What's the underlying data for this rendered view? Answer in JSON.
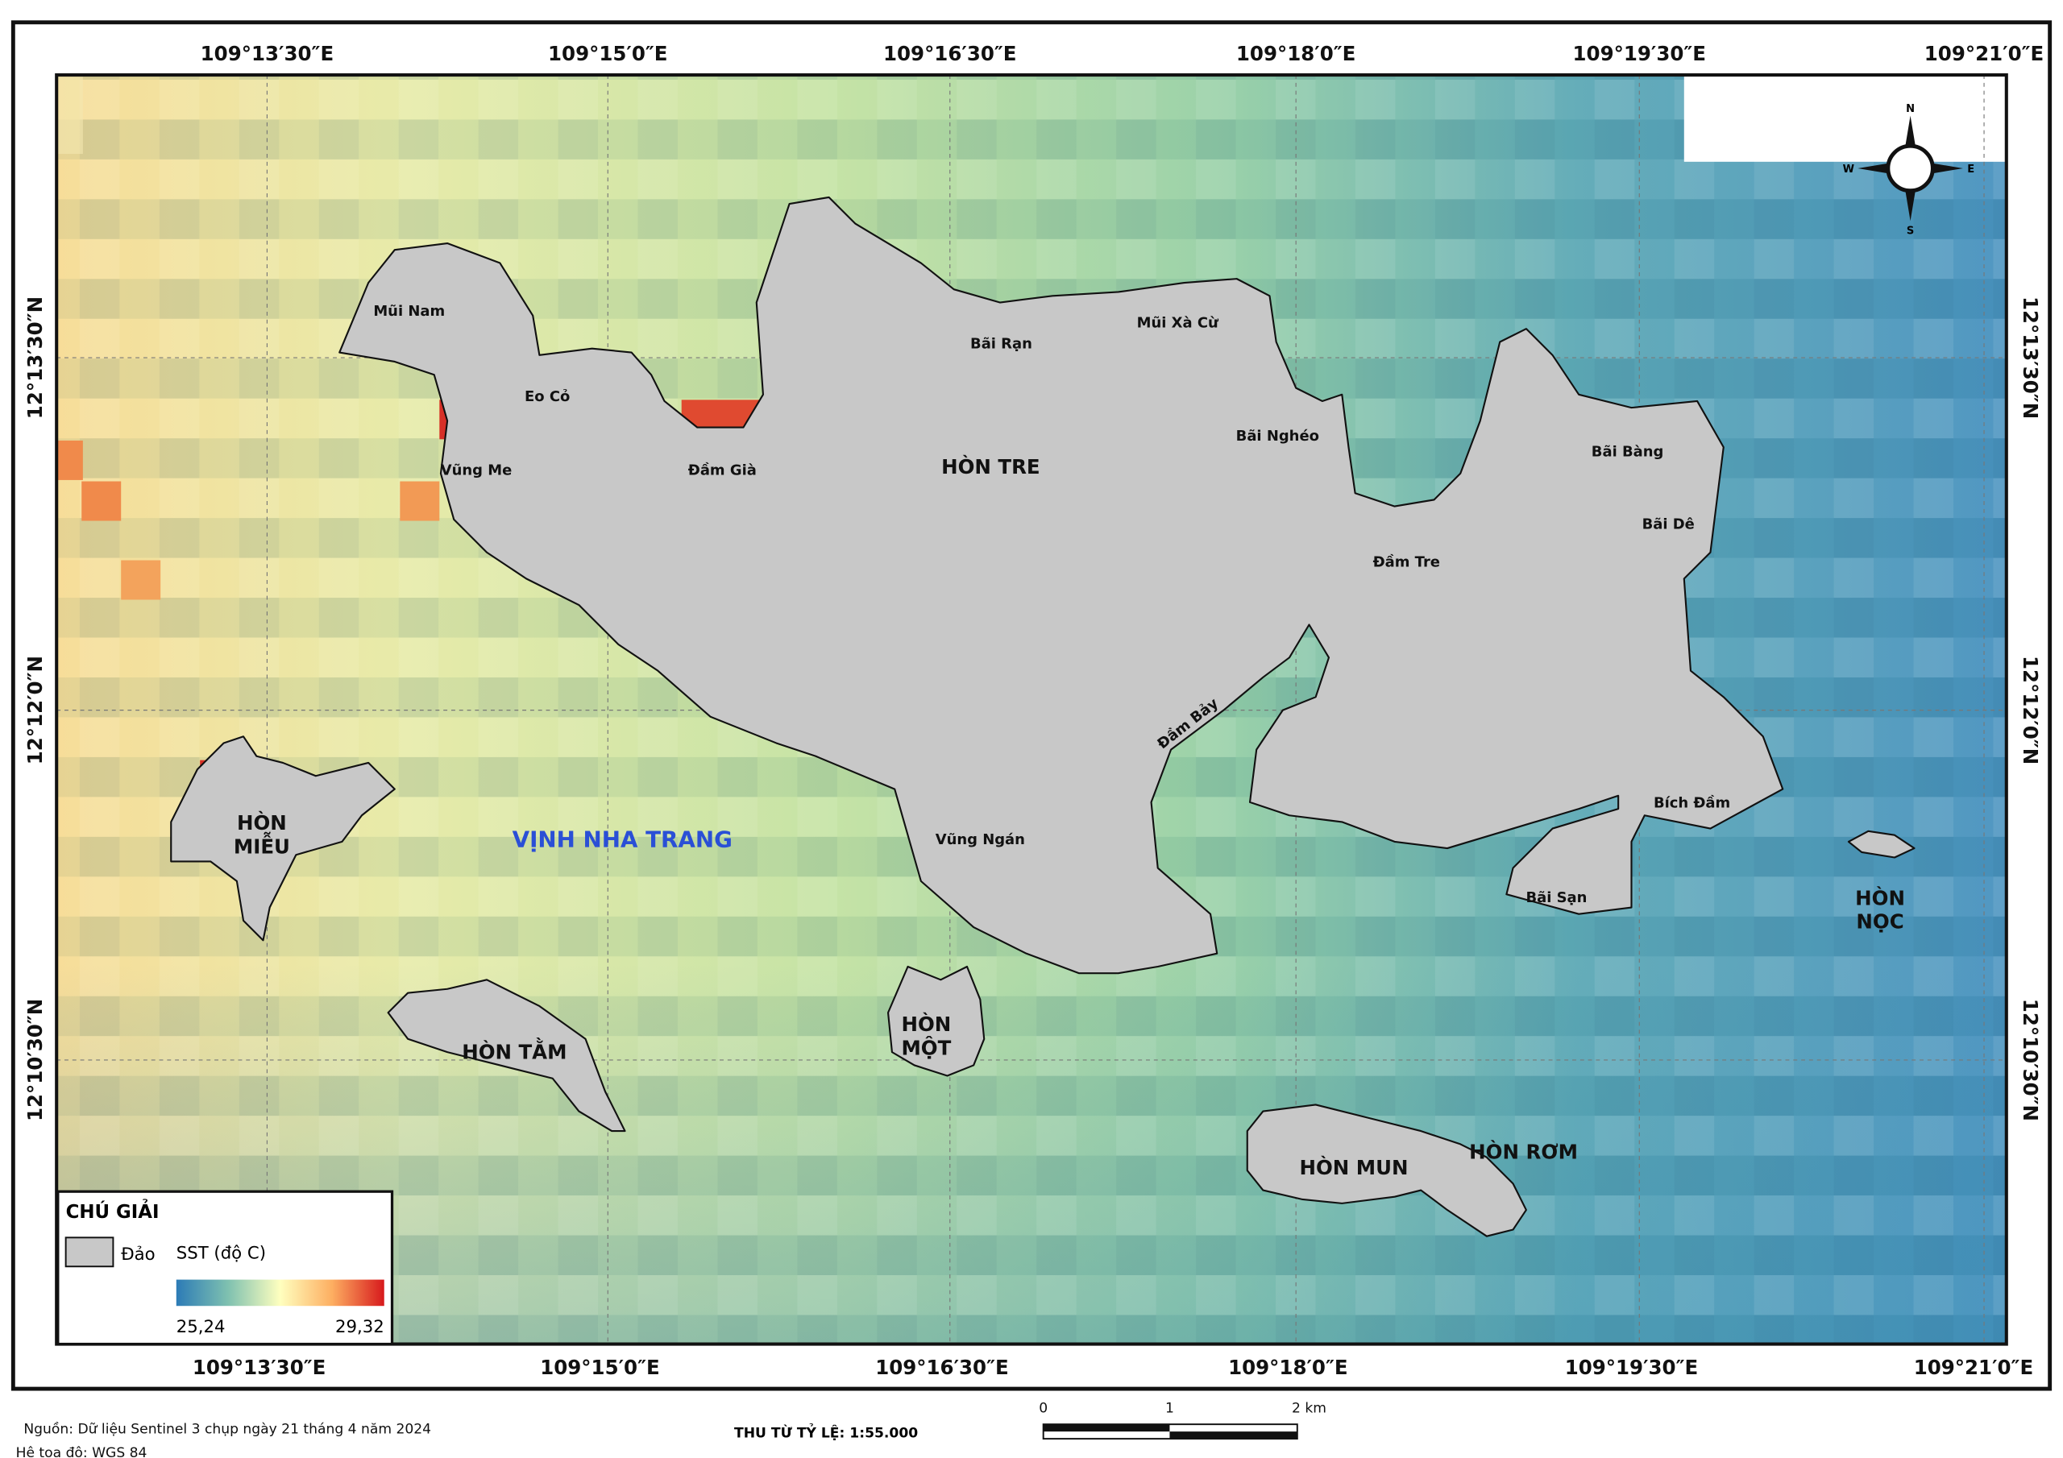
{
  "map": {
    "longitude_ticks": [
      "109°13′30″E",
      "109°15′0″E",
      "109°16′30″E",
      "109°18′0″E",
      "109°19′30″E",
      "109°21′0″E"
    ],
    "latitude_ticks": [
      "12°13′30″N",
      "12°12′0″N",
      "12°10′30″N"
    ],
    "places": {
      "mui_nam": "Mũi Nam",
      "eo_co": "Eo Cỏ",
      "vung_me": "Vũng Me",
      "dam_gia": "Đầm Già",
      "hon_tre": "HÒN TRE",
      "bai_ran": "Bãi Rạn",
      "mui_xa_cu": "Mũi Xà Cừ",
      "bai_ngheo": "Bãi Nghéo",
      "bai_bang": "Bãi Bàng",
      "bai_de": "Bãi Dê",
      "dam_tre": "Đầm Tre",
      "dam_bay": "Đầm Bảy",
      "vung_ngan": "Vũng Ngán",
      "bich_dam": "Bích Đầm",
      "bai_san": "Bãi Sạn",
      "hon_mieu": [
        "HÒN",
        "MIỄU"
      ],
      "vinh_nha_trang": "VỊNH NHA TRANG",
      "hon_tam": "HÒN TẰM",
      "hon_mot": [
        "HÒN",
        "MỘT"
      ],
      "hon_mun": "HÒN MUN",
      "hon_rom": "HÒN RƠM",
      "hon_noc": [
        "HÒN",
        "NỌC"
      ]
    },
    "compass": {
      "n": "N",
      "e": "E",
      "s": "S",
      "w": "W"
    }
  },
  "legend": {
    "title": "CHÚ GIẢI",
    "island": "Đảo",
    "sst_title": "SST (độ C)",
    "min": "25,24",
    "max": "29,32"
  },
  "footer": {
    "source": "Nguồn: Dữ liệu Sentinel 3 chụp ngày 21 tháng 4 năm 2024",
    "crs": "Hệ toạ độ: WGS 84",
    "scale_text": "THU TỪ TỶ LỆ: 1:55.000",
    "scale_bar": [
      "0",
      "1",
      "2 km"
    ]
  }
}
